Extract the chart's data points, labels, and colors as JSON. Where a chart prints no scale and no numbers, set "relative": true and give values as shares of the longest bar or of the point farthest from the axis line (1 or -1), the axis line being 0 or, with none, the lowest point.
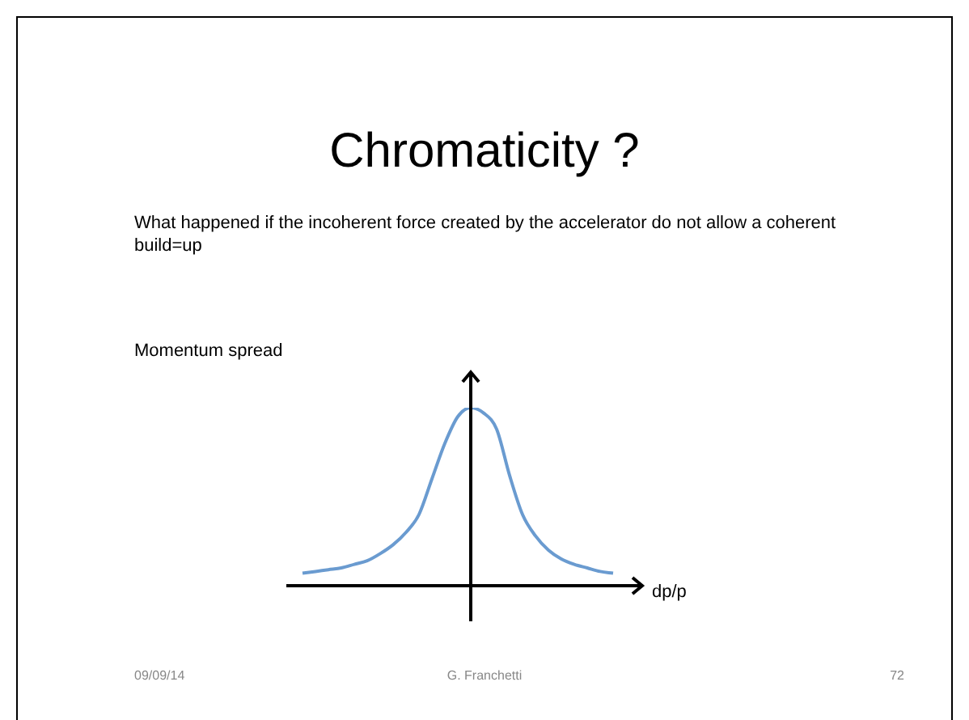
{
  "chart_data": {
    "type": "line",
    "title": "Chromaticity ?",
    "subtitle": "What happened if the incoherent force created by the accelerator do not allow a coherent build=up",
    "ylabel": "Momentum spread",
    "xlabel": "dp/p",
    "relative": true,
    "categories": [
      null,
      null,
      null,
      null,
      null,
      null,
      null,
      null,
      null,
      null,
      null,
      null,
      null,
      null,
      null,
      null,
      null,
      null,
      null,
      null,
      null,
      null,
      null,
      null,
      null
    ],
    "series": [
      {
        "color": "#6a9bd0",
        "values": [
          0.07,
          0.08,
          0.09,
          0.1,
          0.12,
          0.14,
          0.18,
          0.23,
          0.3,
          0.4,
          0.6,
          0.8,
          0.95,
          1,
          0.97,
          0.88,
          0.62,
          0.4,
          0.28,
          0.2,
          0.15,
          0.12,
          0.1,
          0.08,
          0.07
        ]
      }
    ],
    "annotations": [
      "09/09/14",
      "G. Franchetti",
      "72"
    ]
  }
}
